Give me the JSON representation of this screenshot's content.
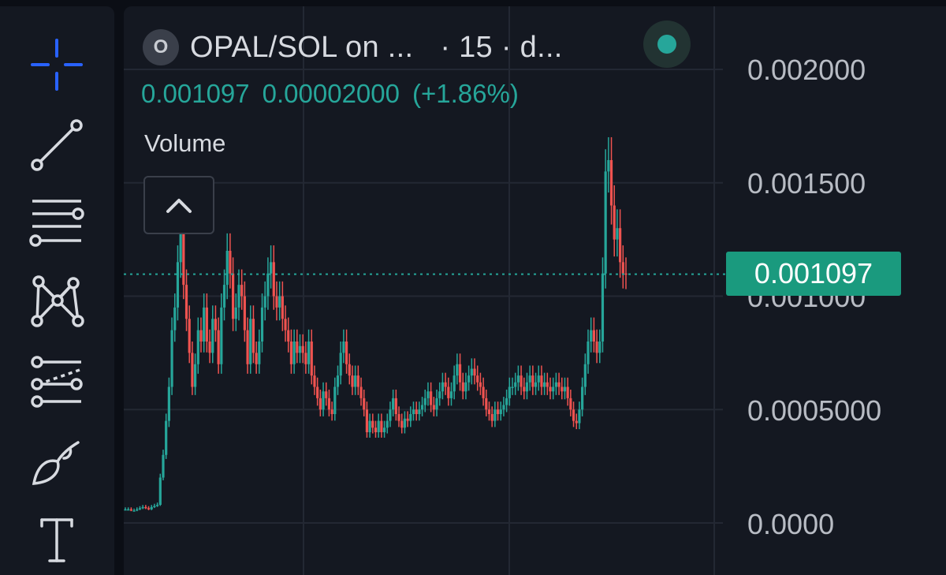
{
  "toolbar": {
    "tools": [
      "crosshair-icon",
      "trend-line-icon",
      "horizontal-lines-icon",
      "pattern-icon",
      "forecast-icon",
      "brush-icon",
      "text-icon"
    ],
    "accent": "#2962ff"
  },
  "legend": {
    "logo_letter": "O",
    "pair": "OPAL/SOL on ...",
    "interval": "· 15 · d...",
    "status_color": "#26a69a",
    "last_price": "0.001097",
    "change": "0.00002000",
    "change_pct": "(+1.86%)",
    "volume_label": "Volume"
  },
  "price_axis": {
    "labels": [
      "0.002000",
      "0.001500",
      "0.001000",
      "0.0005000",
      "0.0000"
    ],
    "current_price_tag": "0.001097",
    "tag_color": "#1a9a7e"
  },
  "chart_data": {
    "type": "candlestick",
    "title": "",
    "ylim": [
      0,
      0.002
    ],
    "yticks": [
      0,
      0.0005,
      0.001,
      0.0015,
      0.002
    ],
    "current_price": 0.001097,
    "colors": {
      "up": "#26a69a",
      "down": "#ef5350"
    },
    "series": [
      {
        "values": [
          6e-05,
          6e-05,
          5.5e-05,
          5.5e-05,
          6e-05,
          6.5e-05,
          7e-05,
          6.5e-05,
          6e-05,
          7e-05,
          7.5e-05,
          8e-05,
          0.0002,
          0.0003,
          0.00045,
          0.0006,
          0.00085,
          0.00095,
          0.00115,
          0.0013,
          0.00105,
          0.0009,
          0.00075,
          0.0006,
          0.0007,
          0.00085,
          0.0008,
          0.00095,
          0.0008,
          0.00075,
          0.0009,
          0.00085,
          0.0007,
          0.00095,
          0.00105,
          0.0012,
          0.0011,
          0.0009,
          0.00095,
          0.00105,
          0.001,
          0.00085,
          0.0007,
          0.0009,
          0.00075,
          0.0007,
          0.0008,
          0.00095,
          0.001,
          0.0011,
          0.00115,
          0.001,
          0.00095,
          0.001,
          0.0009,
          0.00085,
          0.0008,
          0.0007,
          0.0008,
          0.00075,
          0.00078,
          0.00075,
          0.0007,
          0.0008,
          0.00065,
          0.0006,
          0.00055,
          0.0005,
          0.00058,
          0.00055,
          0.0005,
          0.00048,
          0.0006,
          0.00065,
          0.00075,
          0.0008,
          0.0007,
          0.00065,
          0.0006,
          0.00065,
          0.0006,
          0.00055,
          0.0005,
          0.0004,
          0.00045,
          0.00042,
          0.0004,
          0.00045,
          0.0004,
          0.00042,
          0.00045,
          0.0005,
          0.00055,
          0.00048,
          0.00045,
          0.00042,
          0.00046,
          0.00045,
          0.00048,
          0.0005,
          0.00048,
          0.0005,
          0.00052,
          0.00055,
          0.00058,
          0.00052,
          0.0005,
          0.00055,
          0.00058,
          0.00062,
          0.0006,
          0.00055,
          0.00058,
          0.00065,
          0.0007,
          0.00062,
          0.00058,
          0.00062,
          0.00065,
          0.00068,
          0.00065,
          0.00062,
          0.0006,
          0.00055,
          0.0005,
          0.00048,
          0.00045,
          0.0005,
          0.00048,
          0.0005,
          0.00052,
          0.00055,
          0.0006,
          0.0006,
          0.00062,
          0.00065,
          0.0006,
          0.00058,
          0.00062,
          0.00065,
          0.0006,
          0.00062,
          0.00065,
          0.0006,
          0.00062,
          0.0006,
          0.00058,
          0.0006,
          0.00062,
          0.0006,
          0.00058,
          0.0006,
          0.00055,
          0.0005,
          0.00045,
          0.00044,
          0.0005,
          0.0006,
          0.0007,
          0.0008,
          0.00085,
          0.0008,
          0.00075,
          0.0008,
          0.0011,
          0.00155,
          0.0016,
          0.0014,
          0.00125,
          0.0013,
          0.00115,
          0.0011,
          0.001097
        ]
      }
    ]
  }
}
